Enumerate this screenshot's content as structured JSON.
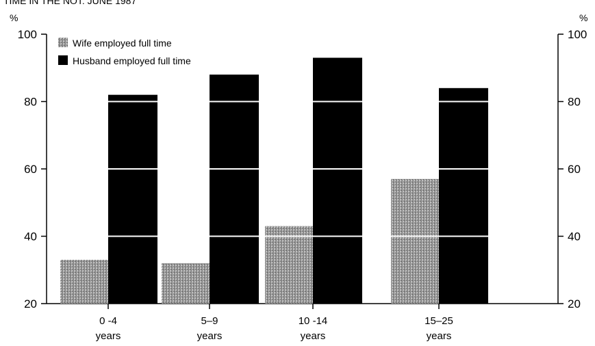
{
  "header_fragment": "TIME IN THE NOT: JUNE 1987",
  "chart_data": {
    "type": "bar",
    "categories": [
      {
        "line1": "0 -4",
        "line2": "years"
      },
      {
        "line1": "5–9",
        "line2": "years"
      },
      {
        "line1": "10 -14",
        "line2": "years"
      },
      {
        "line1": "15–25",
        "line2": "years"
      }
    ],
    "series": [
      {
        "name": "Wife employed full time",
        "values": [
          33,
          32,
          43,
          57
        ],
        "color": "#8c8c8c"
      },
      {
        "name": "Husband employed full time",
        "values": [
          82,
          88,
          93,
          84
        ],
        "color": "#000000"
      }
    ],
    "y_unit_left": "%",
    "y_unit_right": "%",
    "ylim": [
      20,
      100
    ],
    "yticks": [
      20,
      40,
      60,
      80,
      100
    ],
    "grid_on_bars": [
      40,
      60,
      80
    ],
    "legend_position": "top-left"
  }
}
